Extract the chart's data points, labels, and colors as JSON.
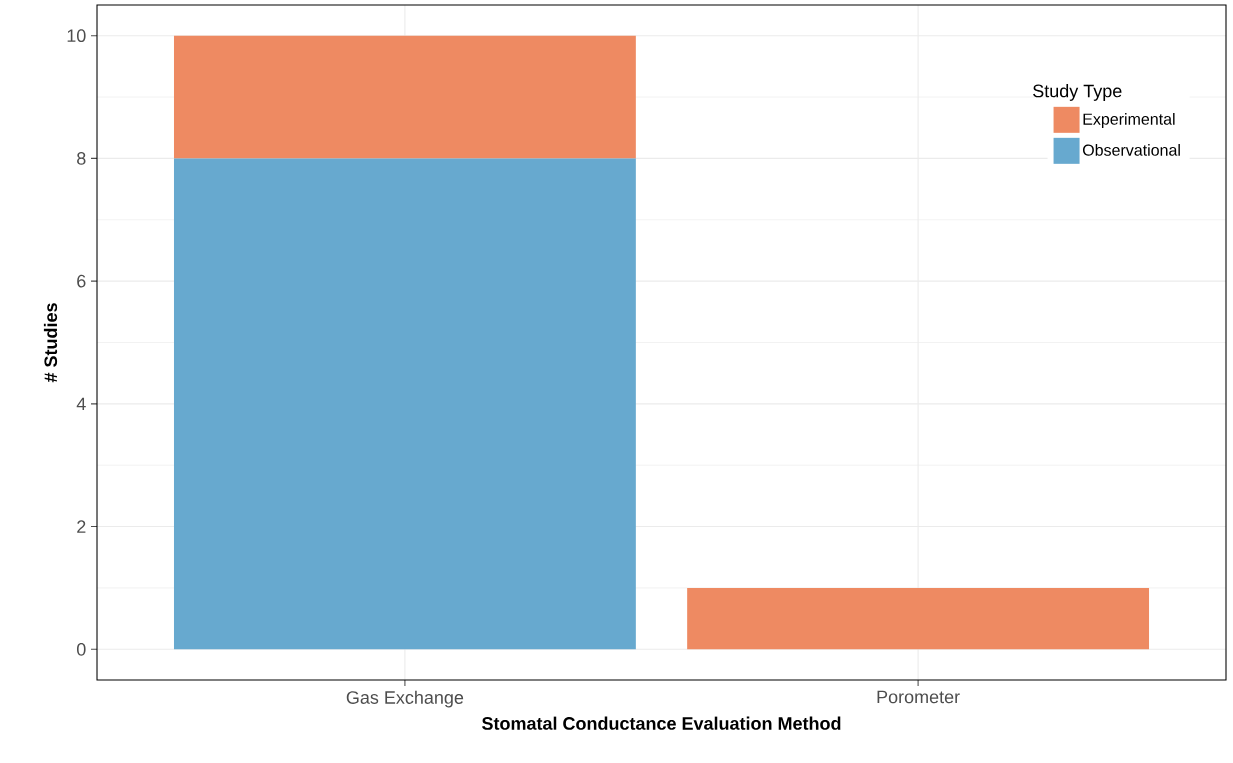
{
  "chart_data": {
    "type": "bar",
    "stacked": true,
    "xlabel": "Stomatal Conductance Evaluation Method",
    "ylabel": "# Studies",
    "legend_title": "Study Type",
    "categories": [
      "Gas Exchange",
      "Porometer"
    ],
    "series": [
      {
        "name": "Observational",
        "color": "#67a9cf",
        "values": [
          8,
          0
        ]
      },
      {
        "name": "Experimental",
        "color": "#ee8a62",
        "values": [
          2,
          1
        ]
      }
    ],
    "ylim": [
      -0.5,
      10.5
    ],
    "yticks": [
      0,
      2,
      4,
      6,
      8,
      10
    ],
    "grid": true,
    "legend": "top right"
  }
}
